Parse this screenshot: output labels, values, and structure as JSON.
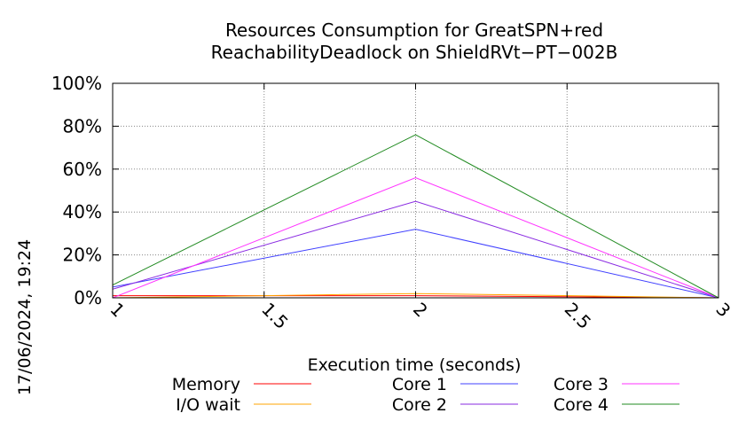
{
  "chart_data": {
    "type": "line",
    "title": "Resources Consumption for GreatSPN+red",
    "subtitle": "ReachabilityDeadlock on ShieldRVt−PT−002B",
    "xlabel": "Execution time (seconds)",
    "ylabel": "",
    "side_label": "17/06/2024, 19:24",
    "x": [
      1,
      2,
      3
    ],
    "xlim": [
      1,
      3
    ],
    "ylim": [
      0,
      100
    ],
    "x_ticks": [
      1,
      1.5,
      2,
      2.5,
      3
    ],
    "x_tick_labels": [
      "1",
      "1.5",
      "2",
      "2.5",
      "3"
    ],
    "y_ticks": [
      0,
      20,
      40,
      60,
      80,
      100
    ],
    "y_tick_labels": [
      "0%",
      "20%",
      "40%",
      "60%",
      "80%",
      "100%"
    ],
    "grid": true,
    "legend_position": "bottom",
    "series": [
      {
        "name": "Memory",
        "color": "#ff0000",
        "values": [
          1,
          1,
          0
        ]
      },
      {
        "name": "I/O wait",
        "color": "#ffa500",
        "values": [
          0,
          2,
          0
        ]
      },
      {
        "name": "Core 1",
        "color": "#4040ff",
        "values": [
          5,
          32,
          0
        ]
      },
      {
        "name": "Core 2",
        "color": "#8a2be2",
        "values": [
          4,
          45,
          0
        ]
      },
      {
        "name": "Core 3",
        "color": "#ff33ff",
        "values": [
          0,
          56,
          0
        ]
      },
      {
        "name": "Core 4",
        "color": "#228b22",
        "values": [
          6,
          76,
          0
        ]
      }
    ]
  }
}
